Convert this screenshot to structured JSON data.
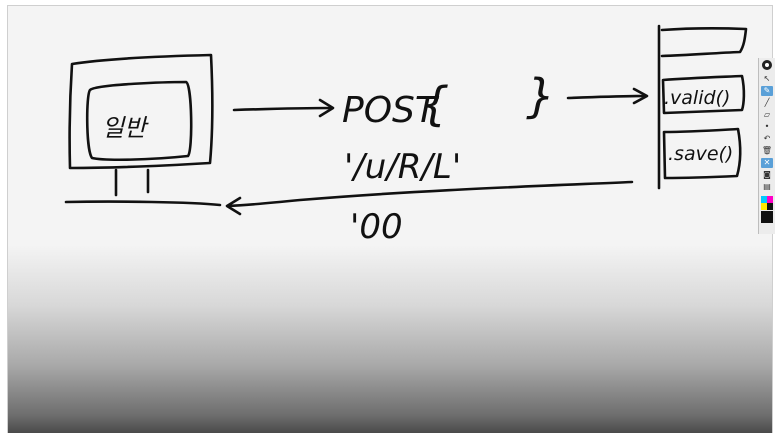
{
  "sketch": {
    "screen_text": "일반",
    "request_method": "POST",
    "request_body_open": "{",
    "request_body_close": "}",
    "url_path": "'/u/R/L'",
    "response_code": "'00",
    "server_calls": [
      ".valid()",
      ".save()"
    ]
  },
  "toolbar": {
    "buttons": [
      {
        "name": "select-icon",
        "glyph": "↖"
      },
      {
        "name": "pen-icon",
        "glyph": "✎"
      },
      {
        "name": "line-icon",
        "glyph": "╱"
      },
      {
        "name": "eraser-icon",
        "glyph": "▱"
      },
      {
        "name": "dot-icon",
        "glyph": "•"
      },
      {
        "name": "undo-icon",
        "glyph": "↶"
      },
      {
        "name": "delete-icon",
        "glyph": "🗑"
      },
      {
        "name": "clear-icon",
        "glyph": "✕"
      },
      {
        "name": "camera-icon",
        "glyph": "◙"
      },
      {
        "name": "page-icon",
        "glyph": "▤"
      }
    ],
    "active_color": "#5aa0d8",
    "swatches": [
      "#00c8ff",
      "#ff00c8",
      "#ffe600",
      "#111111"
    ]
  }
}
